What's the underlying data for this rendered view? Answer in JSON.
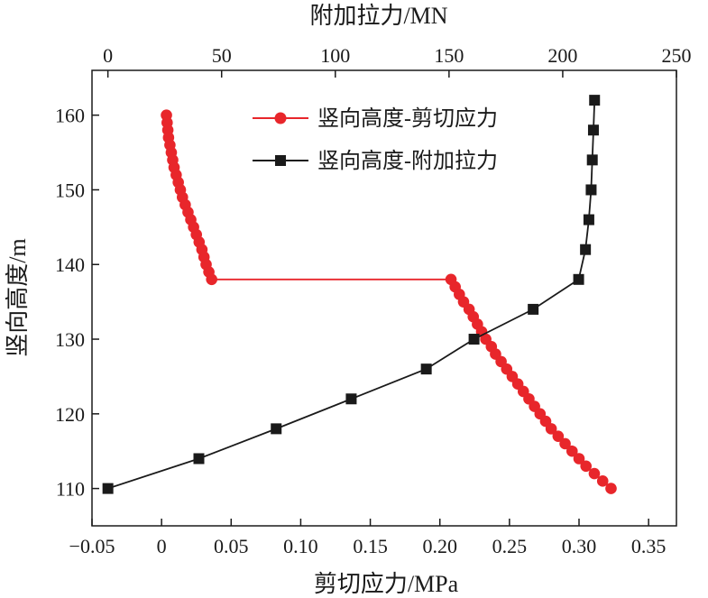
{
  "chart_data": {
    "type": "line",
    "x_bottom": {
      "label": "剪切应力/MPa",
      "range": [
        -0.05,
        0.37
      ],
      "ticks": [
        -0.05,
        0,
        0.05,
        0.1,
        0.15,
        0.2,
        0.25,
        0.3,
        0.35
      ],
      "tick_labels": [
        "−0.05",
        "0",
        "0.05",
        "0.10",
        "0.15",
        "0.20",
        "0.25",
        "0.30",
        "0.35"
      ]
    },
    "x_top": {
      "label": "附加拉力/MN",
      "range": [
        -7,
        250
      ],
      "ticks": [
        0,
        50,
        100,
        150,
        200,
        250
      ],
      "tick_labels": [
        "0",
        "50",
        "100",
        "150",
        "200",
        "250"
      ]
    },
    "y": {
      "label": "竖向高度/m",
      "range": [
        105,
        166
      ],
      "ticks": [
        110,
        120,
        130,
        140,
        150,
        160
      ],
      "tick_labels": [
        "110",
        "120",
        "130",
        "140",
        "150",
        "160"
      ]
    },
    "legend": {
      "placement": "top-center",
      "entries": [
        "竖向高度-剪切应力",
        "竖向高度-附加拉力"
      ]
    },
    "series": [
      {
        "name": "竖向高度-剪切应力",
        "axis": "bottom",
        "color": "#e8262b",
        "marker": "circle",
        "points": [
          [
            0.0035,
            160
          ],
          [
            0.004,
            159
          ],
          [
            0.0045,
            158
          ],
          [
            0.005,
            157
          ],
          [
            0.006,
            156
          ],
          [
            0.007,
            155
          ],
          [
            0.008,
            154
          ],
          [
            0.009,
            153
          ],
          [
            0.0105,
            152
          ],
          [
            0.012,
            151
          ],
          [
            0.0135,
            150
          ],
          [
            0.015,
            149
          ],
          [
            0.017,
            148
          ],
          [
            0.019,
            147
          ],
          [
            0.021,
            146
          ],
          [
            0.023,
            145
          ],
          [
            0.025,
            144
          ],
          [
            0.027,
            143
          ],
          [
            0.029,
            142
          ],
          [
            0.0305,
            141
          ],
          [
            0.032,
            140
          ],
          [
            0.034,
            139
          ],
          [
            0.036,
            138
          ],
          [
            0.208,
            138
          ],
          [
            0.211,
            137
          ],
          [
            0.214,
            136
          ],
          [
            0.217,
            135
          ],
          [
            0.221,
            134
          ],
          [
            0.224,
            133
          ],
          [
            0.227,
            132
          ],
          [
            0.23,
            131
          ],
          [
            0.233,
            130
          ],
          [
            0.237,
            129
          ],
          [
            0.24,
            128
          ],
          [
            0.244,
            127
          ],
          [
            0.248,
            126
          ],
          [
            0.252,
            125
          ],
          [
            0.256,
            124
          ],
          [
            0.26,
            123
          ],
          [
            0.264,
            122
          ],
          [
            0.268,
            121
          ],
          [
            0.272,
            120
          ],
          [
            0.276,
            119
          ],
          [
            0.28,
            118
          ],
          [
            0.285,
            117
          ],
          [
            0.29,
            116
          ],
          [
            0.295,
            115
          ],
          [
            0.3,
            114
          ],
          [
            0.305,
            113
          ],
          [
            0.311,
            112
          ],
          [
            0.317,
            111
          ],
          [
            0.323,
            110
          ]
        ]
      },
      {
        "name": "竖向高度-附加拉力",
        "axis": "top",
        "color": "#1a1a1a",
        "marker": "square",
        "points": [
          [
            0,
            110
          ],
          [
            40,
            114
          ],
          [
            74,
            118
          ],
          [
            107,
            122
          ],
          [
            140,
            126
          ],
          [
            161,
            130
          ],
          [
            187,
            134
          ],
          [
            207,
            138
          ],
          [
            210,
            142
          ],
          [
            211.5,
            146
          ],
          [
            212.5,
            150
          ],
          [
            213,
            154
          ],
          [
            213.5,
            158
          ],
          [
            214,
            162
          ]
        ]
      }
    ]
  }
}
